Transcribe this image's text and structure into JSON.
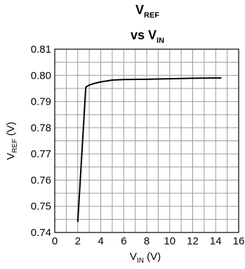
{
  "chart_data": {
    "type": "line",
    "title": {
      "line1_main": "V",
      "line1_sub": "REF",
      "line2_main": "vs V",
      "line2_sub": "IN"
    },
    "xlabel": {
      "main": "V",
      "sub": "IN",
      "unit": " (V)"
    },
    "ylabel": {
      "main": "V",
      "sub": "REF",
      "unit": " (V)"
    },
    "xlim": [
      0,
      16
    ],
    "ylim": [
      0.74,
      0.81
    ],
    "x_ticks": [
      "0",
      "2",
      "4",
      "6",
      "8",
      "10",
      "12",
      "14",
      "16"
    ],
    "y_ticks": [
      "0.74",
      "0.75",
      "0.76",
      "0.77",
      "0.78",
      "0.79",
      "0.80",
      "0.81"
    ],
    "grid": true,
    "series": [
      {
        "x": [
          2.0,
          2.7,
          3.0,
          3.5,
          4.0,
          5.0,
          6.0,
          8.0,
          10.0,
          12.0,
          14.5
        ],
        "y": [
          0.744,
          0.7955,
          0.7963,
          0.797,
          0.7975,
          0.7982,
          0.7984,
          0.7985,
          0.7987,
          0.7989,
          0.799
        ]
      }
    ]
  }
}
